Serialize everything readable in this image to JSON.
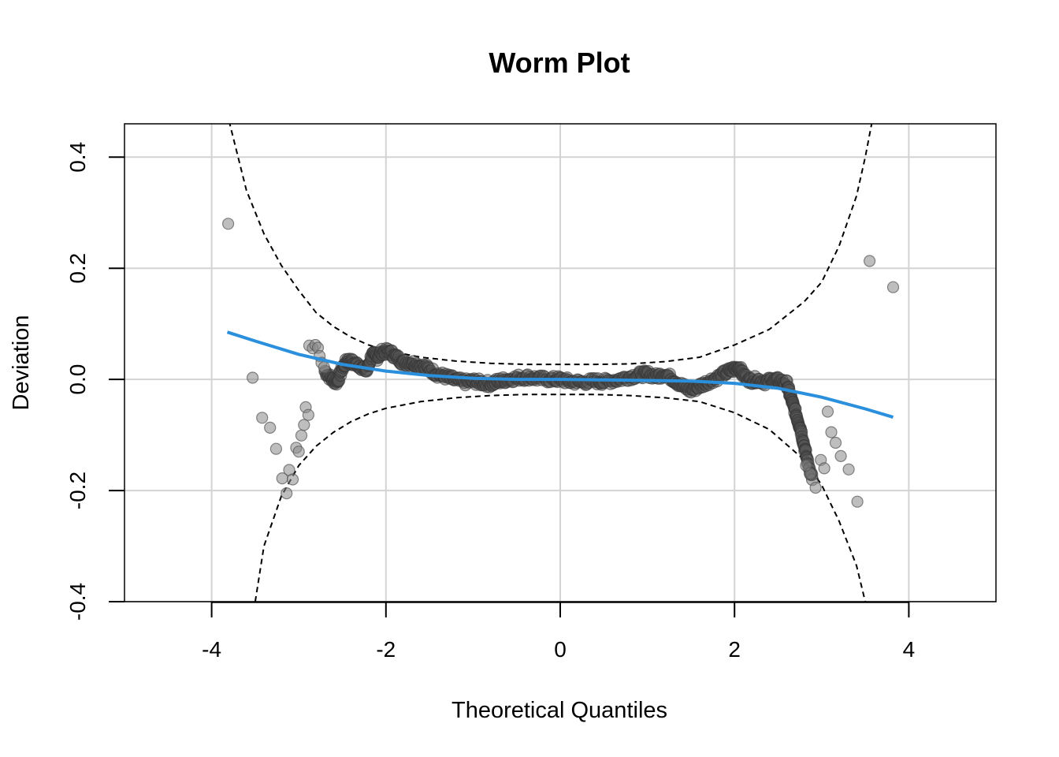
{
  "chart_data": {
    "type": "scatter",
    "title": "Worm Plot",
    "xlabel": "Theoretical Quantiles",
    "ylabel": "Deviation",
    "xlim": [
      -5,
      5
    ],
    "ylim": [
      -0.4,
      0.46
    ],
    "x_ticks": [
      "-4",
      "-2",
      "0",
      "2",
      "4"
    ],
    "x_tick_values": [
      -4,
      -2,
      0,
      2,
      4
    ],
    "y_ticks": [
      "-0.4",
      "-0.2",
      "0.0",
      "0.2",
      "0.4"
    ],
    "y_tick_values": [
      -0.4,
      -0.2,
      0.0,
      0.2,
      0.4
    ],
    "grid": true,
    "point_color": "#555555",
    "smooth_color": "#2a8fdc",
    "band_color": "#000000",
    "sparse_points": [
      [
        -3.81,
        0.28
      ],
      [
        -3.53,
        0.003
      ],
      [
        -3.42,
        -0.069
      ],
      [
        -3.33,
        -0.087
      ],
      [
        -3.26,
        -0.125
      ],
      [
        -3.19,
        -0.178
      ],
      [
        -3.14,
        -0.205
      ],
      [
        -3.11,
        -0.163
      ],
      [
        -3.07,
        -0.18
      ],
      [
        -3.03,
        -0.123
      ],
      [
        -3.0,
        -0.13
      ],
      [
        -2.97,
        -0.101
      ],
      [
        -2.94,
        -0.082
      ],
      [
        -2.92,
        -0.05
      ],
      [
        -2.89,
        -0.064
      ],
      [
        -2.88,
        0.061
      ],
      [
        -2.84,
        0.056
      ],
      [
        -2.81,
        0.062
      ],
      [
        -2.78,
        0.057
      ],
      [
        -2.76,
        0.042
      ],
      [
        -2.74,
        0.03
      ],
      [
        -2.71,
        0.022
      ],
      [
        3.07,
        -0.058
      ],
      [
        3.11,
        -0.095
      ],
      [
        3.16,
        -0.114
      ],
      [
        3.22,
        -0.138
      ],
      [
        3.31,
        -0.162
      ],
      [
        3.41,
        -0.22
      ],
      [
        3.55,
        0.213
      ],
      [
        3.82,
        0.166
      ],
      [
        2.99,
        -0.145
      ],
      [
        3.03,
        -0.16
      ],
      [
        2.93,
        -0.195
      ],
      [
        2.87,
        -0.17
      ],
      [
        2.82,
        -0.155
      ]
    ],
    "worm_path": [
      [
        -2.7,
        0.015
      ],
      [
        -2.62,
        0.0
      ],
      [
        -2.56,
        -0.005
      ],
      [
        -2.5,
        0.02
      ],
      [
        -2.44,
        0.035
      ],
      [
        -2.38,
        0.03
      ],
      [
        -2.3,
        0.025
      ],
      [
        -2.22,
        0.015
      ],
      [
        -2.16,
        0.045
      ],
      [
        -2.1,
        0.04
      ],
      [
        -2.04,
        0.05
      ],
      [
        -1.96,
        0.05
      ],
      [
        -1.88,
        0.04
      ],
      [
        -1.8,
        0.03
      ],
      [
        -1.7,
        0.03
      ],
      [
        -1.62,
        0.025
      ],
      [
        -1.52,
        0.02
      ],
      [
        -1.42,
        0.01
      ],
      [
        -1.32,
        0.005
      ],
      [
        -1.22,
        0.0
      ],
      [
        -1.1,
        -0.005
      ],
      [
        -1.0,
        -0.003
      ],
      [
        -0.9,
        -0.006
      ],
      [
        -0.8,
        -0.008
      ],
      [
        -0.7,
        -0.003
      ],
      [
        -0.6,
        0.0
      ],
      [
        -0.48,
        0.003
      ],
      [
        -0.36,
        0.004
      ],
      [
        -0.24,
        0.001
      ],
      [
        -0.1,
        0.0
      ],
      [
        0.0,
        0.0
      ],
      [
        0.12,
        -0.004
      ],
      [
        0.26,
        -0.005
      ],
      [
        0.4,
        -0.003
      ],
      [
        0.5,
        -0.004
      ],
      [
        0.64,
        -0.001
      ],
      [
        0.78,
        0.004
      ],
      [
        0.9,
        0.008
      ],
      [
        1.0,
        0.01
      ],
      [
        1.1,
        0.005
      ],
      [
        1.2,
        0.01
      ],
      [
        1.3,
        0.0
      ],
      [
        1.4,
        -0.012
      ],
      [
        1.5,
        -0.02
      ],
      [
        1.6,
        -0.012
      ],
      [
        1.7,
        -0.004
      ],
      [
        1.8,
        0.003
      ],
      [
        1.9,
        0.012
      ],
      [
        1.98,
        0.018
      ],
      [
        2.05,
        0.022
      ],
      [
        2.1,
        0.008
      ],
      [
        2.18,
        -0.002
      ],
      [
        2.26,
        0.0
      ],
      [
        2.36,
        -0.005
      ],
      [
        2.44,
        0.0
      ],
      [
        2.52,
        -0.003
      ],
      [
        2.6,
        -0.008
      ],
      [
        2.64,
        -0.03
      ],
      [
        2.68,
        -0.05
      ],
      [
        2.72,
        -0.07
      ],
      [
        2.76,
        -0.09
      ],
      [
        2.8,
        -0.12
      ],
      [
        2.84,
        -0.15
      ],
      [
        2.9,
        -0.18
      ]
    ],
    "smooth_curve": [
      [
        -3.82,
        0.085
      ],
      [
        -3.5,
        0.069
      ],
      [
        -3.0,
        0.045
      ],
      [
        -2.5,
        0.027
      ],
      [
        -2.0,
        0.015
      ],
      [
        -1.5,
        0.007
      ],
      [
        -1.0,
        0.002
      ],
      [
        -0.5,
        0.0
      ],
      [
        0.0,
        0.0
      ],
      [
        0.5,
        -0.001
      ],
      [
        1.0,
        -0.002
      ],
      [
        1.5,
        -0.003
      ],
      [
        2.0,
        -0.007
      ],
      [
        2.5,
        -0.016
      ],
      [
        3.0,
        -0.032
      ],
      [
        3.5,
        -0.053
      ],
      [
        3.82,
        -0.068
      ]
    ],
    "band_upper": [
      [
        -3.8,
        0.465
      ],
      [
        -3.6,
        0.34
      ],
      [
        -3.4,
        0.262
      ],
      [
        -3.2,
        0.205
      ],
      [
        -3.0,
        0.16
      ],
      [
        -2.8,
        0.12
      ],
      [
        -2.6,
        0.095
      ],
      [
        -2.4,
        0.076
      ],
      [
        -2.2,
        0.062
      ],
      [
        -2.0,
        0.052
      ],
      [
        -1.6,
        0.04
      ],
      [
        -1.2,
        0.033
      ],
      [
        -0.8,
        0.029
      ],
      [
        -0.4,
        0.027
      ],
      [
        0.0,
        0.027
      ],
      [
        0.4,
        0.027
      ],
      [
        0.8,
        0.028
      ],
      [
        1.2,
        0.032
      ],
      [
        1.6,
        0.04
      ],
      [
        2.0,
        0.062
      ],
      [
        2.4,
        0.09
      ],
      [
        2.8,
        0.14
      ],
      [
        3.0,
        0.175
      ],
      [
        3.2,
        0.24
      ],
      [
        3.4,
        0.33
      ],
      [
        3.5,
        0.4
      ],
      [
        3.58,
        0.465
      ]
    ],
    "band_lower": [
      [
        -3.5,
        -0.4
      ],
      [
        -3.4,
        -0.3
      ],
      [
        -3.2,
        -0.21
      ],
      [
        -3.0,
        -0.155
      ],
      [
        -2.8,
        -0.12
      ],
      [
        -2.6,
        -0.095
      ],
      [
        -2.4,
        -0.076
      ],
      [
        -2.2,
        -0.062
      ],
      [
        -2.0,
        -0.052
      ],
      [
        -1.6,
        -0.04
      ],
      [
        -1.2,
        -0.033
      ],
      [
        -0.8,
        -0.029
      ],
      [
        -0.4,
        -0.027
      ],
      [
        0.0,
        -0.027
      ],
      [
        0.4,
        -0.027
      ],
      [
        0.8,
        -0.029
      ],
      [
        1.2,
        -0.033
      ],
      [
        1.6,
        -0.04
      ],
      [
        2.0,
        -0.06
      ],
      [
        2.4,
        -0.09
      ],
      [
        2.8,
        -0.145
      ],
      [
        3.0,
        -0.19
      ],
      [
        3.2,
        -0.255
      ],
      [
        3.4,
        -0.335
      ],
      [
        3.5,
        -0.4
      ]
    ]
  }
}
